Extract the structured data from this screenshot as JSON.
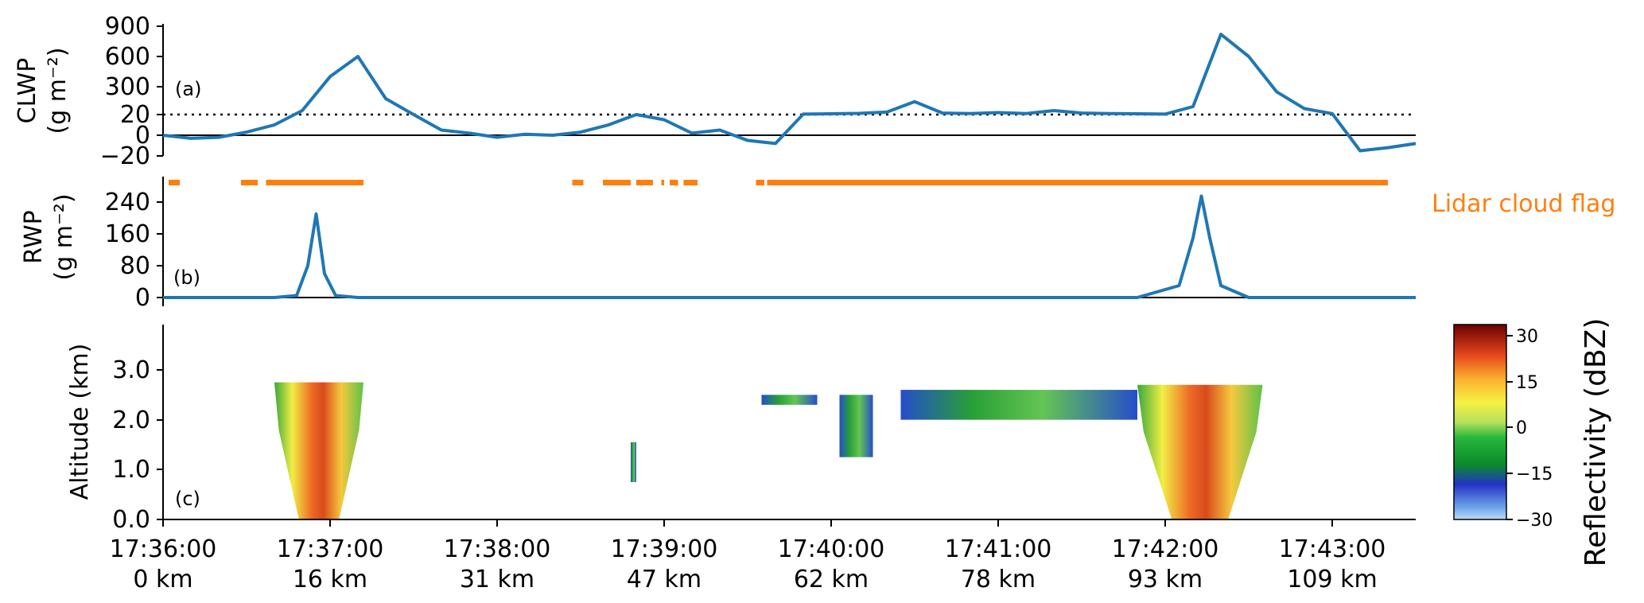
{
  "colors": {
    "line": "#1f77b4",
    "lidar": "#ff7f0e",
    "axis": "#000000"
  },
  "x_ticks": [
    {
      "time": "17:36:00",
      "dist": "0 km"
    },
    {
      "time": "17:37:00",
      "dist": "16 km"
    },
    {
      "time": "17:38:00",
      "dist": "31 km"
    },
    {
      "time": "17:39:00",
      "dist": "47 km"
    },
    {
      "time": "17:40:00",
      "dist": "62 km"
    },
    {
      "time": "17:41:00",
      "dist": "78 km"
    },
    {
      "time": "17:42:00",
      "dist": "93 km"
    },
    {
      "time": "17:43:00",
      "dist": "109 km"
    }
  ],
  "chart_data": [
    {
      "panel": "(a)",
      "type": "line",
      "ylabel": [
        "CLWP",
        "(g m⁻²)"
      ],
      "yticks": [
        "900",
        "600",
        "300",
        "20",
        "0",
        "−20"
      ],
      "reference_lines": [
        {
          "value": 20,
          "style": "dotted"
        },
        {
          "value": 0,
          "style": "solid"
        }
      ],
      "x": [
        "17:36:00",
        "17:36:10",
        "17:36:20",
        "17:36:30",
        "17:36:40",
        "17:36:50",
        "17:37:00",
        "17:37:10",
        "17:37:20",
        "17:37:30",
        "17:37:40",
        "17:37:50",
        "17:38:00",
        "17:38:10",
        "17:38:20",
        "17:38:30",
        "17:38:40",
        "17:38:50",
        "17:39:00",
        "17:39:10",
        "17:39:20",
        "17:39:30",
        "17:39:40",
        "17:39:50",
        "17:40:00",
        "17:40:10",
        "17:40:20",
        "17:40:30",
        "17:40:40",
        "17:40:50",
        "17:41:00",
        "17:41:10",
        "17:41:20",
        "17:41:30",
        "17:41:40",
        "17:41:50",
        "17:42:00",
        "17:42:10",
        "17:42:20",
        "17:42:30",
        "17:42:40",
        "17:42:50",
        "17:43:00",
        "17:43:10",
        "17:43:20",
        "17:43:30"
      ],
      "y": [
        0,
        -3,
        -2,
        3,
        10,
        60,
        400,
        600,
        180,
        20,
        5,
        2,
        -2,
        1,
        0,
        3,
        10,
        20,
        15,
        2,
        5,
        -5,
        -8,
        25,
        28,
        32,
        45,
        150,
        35,
        30,
        40,
        30,
        60,
        35,
        30,
        28,
        25,
        100,
        820,
        600,
        250,
        80,
        30,
        -15,
        -12,
        -8
      ],
      "ylim": [
        -20,
        900
      ]
    },
    {
      "panel": "(b)",
      "type": "line",
      "ylabel": [
        "RWP",
        "(g m⁻²)"
      ],
      "yticks": [
        "240",
        "160",
        "80",
        "0"
      ],
      "x": [
        "17:36:00",
        "17:36:40",
        "17:36:48",
        "17:36:52",
        "17:36:55",
        "17:36:58",
        "17:37:02",
        "17:37:10",
        "17:38:00",
        "17:39:00",
        "17:40:00",
        "17:41:00",
        "17:41:50",
        "17:42:05",
        "17:42:10",
        "17:42:13",
        "17:42:16",
        "17:42:20",
        "17:42:30",
        "17:43:00",
        "17:43:30"
      ],
      "y": [
        0,
        0,
        5,
        80,
        210,
        60,
        5,
        0,
        0,
        0,
        0,
        0,
        0,
        30,
        150,
        255,
        150,
        30,
        0,
        0,
        0
      ],
      "ylim": [
        0,
        280
      ],
      "lidar_cloud_flag": {
        "label": "Lidar cloud flag",
        "segments": [
          [
            "17:36:02",
            "17:36:06"
          ],
          [
            "17:36:28",
            "17:36:34"
          ],
          [
            "17:36:37",
            "17:37:12"
          ],
          [
            "17:38:27",
            "17:38:31"
          ],
          [
            "17:38:38",
            "17:38:48"
          ],
          [
            "17:38:50",
            "17:38:56"
          ],
          [
            "17:38:59",
            "17:39:00"
          ],
          [
            "17:39:02",
            "17:39:05"
          ],
          [
            "17:39:07",
            "17:39:12"
          ],
          [
            "17:39:33",
            "17:39:36"
          ],
          [
            "17:39:37",
            "17:43:20"
          ]
        ]
      }
    },
    {
      "panel": "(c)",
      "type": "heatmap",
      "ylabel": "Altitude (km)",
      "yticks": [
        "3.0",
        "2.0",
        "1.0",
        "0.0"
      ],
      "ylim": [
        0,
        3.9
      ],
      "colorbar": {
        "label": "Reflectivity (dBZ)",
        "ticks": [
          "30",
          "15",
          "0",
          "−15",
          "−30"
        ],
        "range": [
          -30,
          33
        ]
      },
      "echoes": [
        {
          "t0": "17:36:40",
          "t1": "17:37:12",
          "base_km": 0.0,
          "top_km": 2.75,
          "max_dbz": 25
        },
        {
          "t0": "17:38:48",
          "t1": "17:38:50",
          "base_km": 0.75,
          "top_km": 1.55,
          "max_dbz": -18
        },
        {
          "t0": "17:39:35",
          "t1": "17:39:55",
          "base_km": 2.3,
          "top_km": 2.5,
          "max_dbz": -10
        },
        {
          "t0": "17:40:03",
          "t1": "17:40:15",
          "base_km": 1.25,
          "top_km": 2.5,
          "max_dbz": -5
        },
        {
          "t0": "17:40:25",
          "t1": "17:41:50",
          "base_km": 2.0,
          "top_km": 2.6,
          "max_dbz": -8
        },
        {
          "t0": "17:41:50",
          "t1": "17:42:35",
          "base_km": 0.0,
          "top_km": 2.7,
          "max_dbz": 25
        }
      ]
    }
  ]
}
